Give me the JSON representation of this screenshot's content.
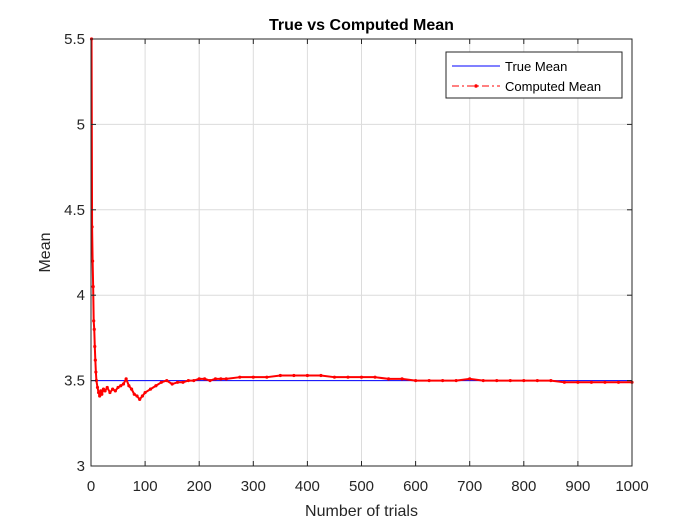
{
  "chart_data": {
    "type": "line",
    "title": "True vs Computed Mean",
    "xlabel": "Number of trials",
    "ylabel": "Mean",
    "xlim": [
      0,
      1000
    ],
    "ylim": [
      3,
      5.5
    ],
    "xticks": [
      0,
      100,
      200,
      300,
      400,
      500,
      600,
      700,
      800,
      900,
      1000
    ],
    "xtick_labels": [
      "0",
      "100",
      "200",
      "300",
      "400",
      "500",
      "600",
      "700",
      "800",
      "900",
      "1000"
    ],
    "yticks": [
      3,
      3.5,
      4,
      4.5,
      5,
      5.5
    ],
    "ytick_labels": [
      "3",
      "3.5",
      "4",
      "4.5",
      "5",
      "5.5"
    ],
    "grid": true,
    "legend_position": "top-right",
    "series": [
      {
        "name": "True Mean",
        "color": "#0000ff",
        "style": "solid",
        "x": [
          0,
          1000
        ],
        "y": [
          3.5,
          3.5
        ]
      },
      {
        "name": "Computed Mean",
        "color": "#ff0000",
        "style": "dash-dot with point markers",
        "x": [
          1,
          2,
          3,
          4,
          5,
          6,
          7,
          8,
          9,
          10,
          12,
          14,
          16,
          18,
          20,
          23,
          26,
          30,
          35,
          40,
          45,
          50,
          55,
          60,
          65,
          70,
          75,
          80,
          85,
          90,
          95,
          100,
          110,
          120,
          130,
          140,
          150,
          160,
          170,
          180,
          190,
          200,
          210,
          220,
          230,
          240,
          250,
          275,
          300,
          325,
          350,
          375,
          400,
          425,
          450,
          475,
          500,
          525,
          550,
          575,
          600,
          625,
          650,
          675,
          700,
          725,
          750,
          775,
          800,
          825,
          850,
          875,
          900,
          925,
          950,
          975,
          1000
        ],
        "y": [
          5.5,
          4.4,
          4.2,
          4.05,
          3.85,
          3.8,
          3.7,
          3.62,
          3.55,
          3.5,
          3.46,
          3.43,
          3.41,
          3.44,
          3.42,
          3.45,
          3.44,
          3.46,
          3.43,
          3.45,
          3.44,
          3.46,
          3.47,
          3.48,
          3.51,
          3.47,
          3.45,
          3.42,
          3.41,
          3.39,
          3.41,
          3.43,
          3.45,
          3.47,
          3.49,
          3.5,
          3.48,
          3.49,
          3.49,
          3.5,
          3.5,
          3.51,
          3.51,
          3.5,
          3.51,
          3.51,
          3.51,
          3.52,
          3.52,
          3.52,
          3.53,
          3.53,
          3.53,
          3.53,
          3.52,
          3.52,
          3.52,
          3.52,
          3.51,
          3.51,
          3.5,
          3.5,
          3.5,
          3.5,
          3.51,
          3.5,
          3.5,
          3.5,
          3.5,
          3.5,
          3.5,
          3.49,
          3.49,
          3.49,
          3.49,
          3.49,
          3.49
        ]
      }
    ]
  }
}
